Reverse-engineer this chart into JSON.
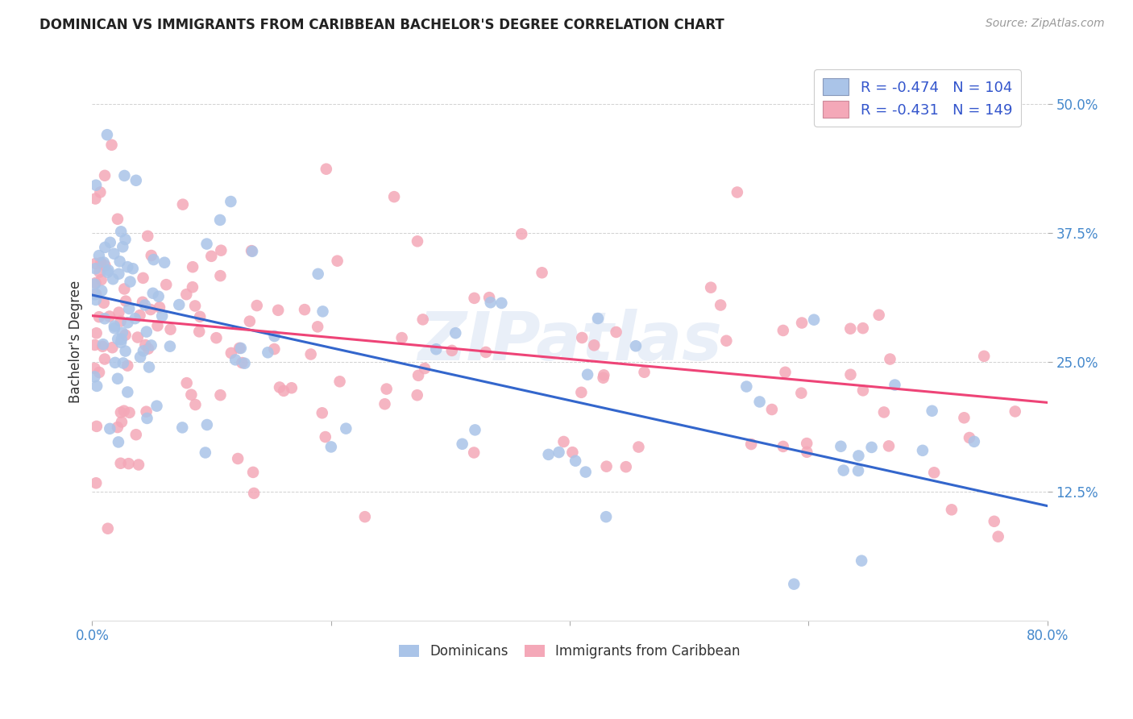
{
  "title": "DOMINICAN VS IMMIGRANTS FROM CARIBBEAN BACHELOR'S DEGREE CORRELATION CHART",
  "source": "Source: ZipAtlas.com",
  "ylabel": "Bachelor's Degree",
  "ytick_labels": [
    "12.5%",
    "25.0%",
    "37.5%",
    "50.0%"
  ],
  "ytick_values": [
    0.125,
    0.25,
    0.375,
    0.5
  ],
  "xlim": [
    0.0,
    0.8
  ],
  "ylim": [
    0.0,
    0.54
  ],
  "dominican_legend": "Dominicans",
  "caribbean_legend": "Immigrants from Caribbean",
  "blue_color": "#aac4e8",
  "pink_color": "#f4a8b8",
  "blue_line_color": "#3366cc",
  "pink_line_color": "#ee4477",
  "legend_text_color": "#3355cc",
  "watermark": "ZIPatlas",
  "blue_R": -0.474,
  "blue_N": 104,
  "pink_R": -0.431,
  "pink_N": 149,
  "blue_intercept": 0.315,
  "blue_slope": -0.255,
  "pink_intercept": 0.295,
  "pink_slope": -0.105
}
